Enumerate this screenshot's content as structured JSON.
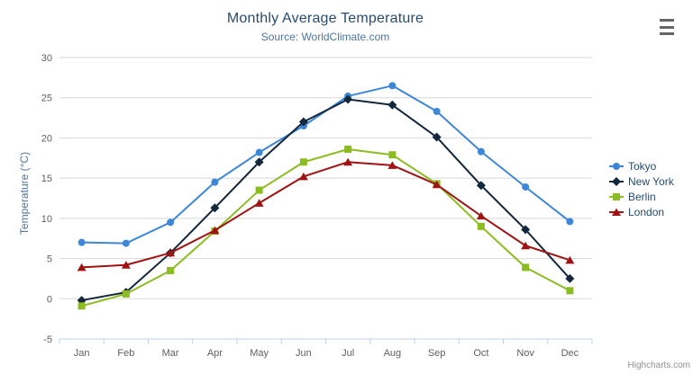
{
  "chart": {
    "title": "Monthly Average Temperature",
    "subtitle": "Source: WorldClimate.com",
    "y_axis_title": "Temperature (°C)",
    "credits": "Highcharts.com"
  },
  "colors": {
    "title": "#274b6d",
    "subtitle": "#4d759e",
    "axis_label": "#606060",
    "grid_line": "#d8d8d8",
    "axis_line": "#c0d0e0",
    "legend_text": "#274b6d",
    "credits": "#909090",
    "burger": "#666666"
  },
  "chart_data": {
    "type": "line",
    "title": "Monthly Average Temperature",
    "subtitle": "Source: WorldClimate.com",
    "xlabel": "",
    "ylabel": "Temperature (°C)",
    "ylim": [
      -5,
      30
    ],
    "y_ticks": [
      -5,
      0,
      5,
      10,
      15,
      20,
      25,
      30
    ],
    "grid": true,
    "legend_position": "right",
    "categories": [
      "Jan",
      "Feb",
      "Mar",
      "Apr",
      "May",
      "Jun",
      "Jul",
      "Aug",
      "Sep",
      "Oct",
      "Nov",
      "Dec"
    ],
    "series": [
      {
        "name": "Tokyo",
        "color": "#3d87d9",
        "marker": "circle",
        "values": [
          7.0,
          6.9,
          9.5,
          14.5,
          18.2,
          21.5,
          25.2,
          26.5,
          23.3,
          18.3,
          13.9,
          9.6
        ]
      },
      {
        "name": "New York",
        "color": "#13273d",
        "marker": "diamond",
        "values": [
          -0.2,
          0.8,
          5.7,
          11.3,
          17.0,
          22.0,
          24.8,
          24.1,
          20.1,
          14.1,
          8.6,
          2.5
        ]
      },
      {
        "name": "Berlin",
        "color": "#8bbc21",
        "marker": "square",
        "values": [
          -0.9,
          0.6,
          3.5,
          8.4,
          13.5,
          17.0,
          18.6,
          17.9,
          14.3,
          9.0,
          3.9,
          1.0
        ]
      },
      {
        "name": "London",
        "color": "#a01313",
        "marker": "triangle",
        "values": [
          3.9,
          4.2,
          5.7,
          8.5,
          11.9,
          15.2,
          17.0,
          16.6,
          14.2,
          10.3,
          6.6,
          4.8
        ]
      }
    ]
  }
}
